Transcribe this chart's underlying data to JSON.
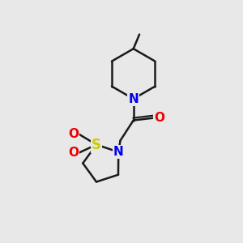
{
  "bg_color": "#e8e8e8",
  "bond_color": "#1a1a1a",
  "bond_width": 1.8,
  "N_color": "#0000ee",
  "O_color": "#ee0000",
  "S_color": "#cccc00",
  "font_size_atom": 11,
  "fig_size": [
    3.0,
    3.0
  ],
  "dpi": 100,
  "xlim": [
    0,
    10
  ],
  "ylim": [
    0,
    10
  ]
}
